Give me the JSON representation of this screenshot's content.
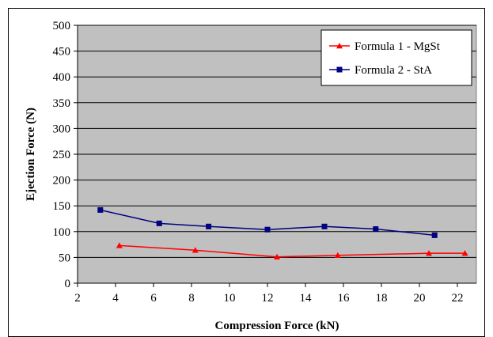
{
  "chart_data": {
    "type": "line",
    "xlabel": "Compression Force (kN)",
    "ylabel": "Ejection Force (N)",
    "xlim": [
      2,
      23
    ],
    "ylim": [
      0,
      500
    ],
    "x_ticks": [
      2,
      4,
      6,
      8,
      10,
      12,
      14,
      16,
      18,
      20,
      22
    ],
    "y_ticks": [
      0,
      50,
      100,
      150,
      200,
      250,
      300,
      350,
      400,
      450,
      500
    ],
    "grid": "horizontal",
    "plot_background": "#c0c0c0",
    "legend_position": "top-right",
    "series": [
      {
        "name": "Formula 1 - MgSt",
        "color": "#ff0000",
        "marker": "triangle",
        "x": [
          4.2,
          8.2,
          12.5,
          15.7,
          20.5,
          22.4
        ],
        "y": [
          73,
          64,
          51,
          54,
          58,
          58
        ]
      },
      {
        "name": "Formula 2 - StA",
        "color": "#000080",
        "marker": "square",
        "x": [
          3.2,
          6.3,
          8.9,
          12.0,
          15.0,
          17.7,
          20.8
        ],
        "y": [
          142,
          116,
          110,
          104,
          110,
          105,
          93
        ]
      }
    ]
  }
}
